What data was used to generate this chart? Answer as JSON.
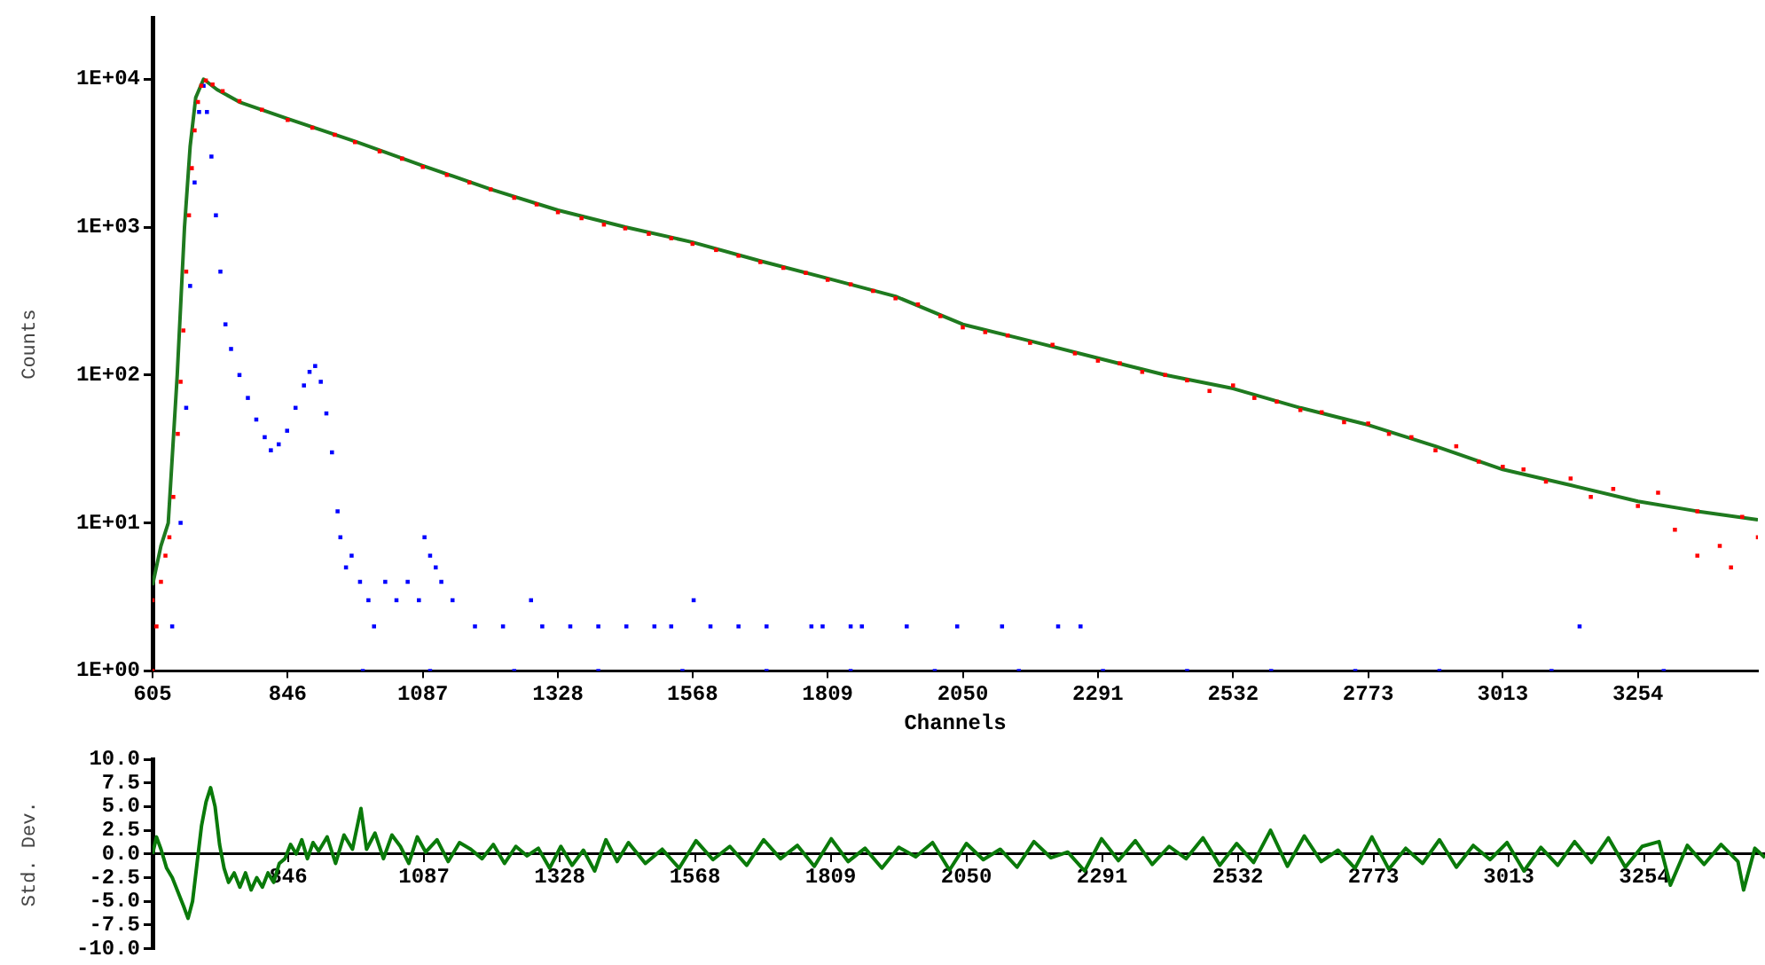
{
  "chart_data": [
    {
      "type": "scatter",
      "xlabel": "Channels",
      "ylabel": "Counts",
      "log": true,
      "grid": false,
      "legend": false,
      "xlim": [
        605,
        3468
      ],
      "xticks": [
        605,
        846,
        1087,
        1328,
        1568,
        1809,
        2050,
        2291,
        2532,
        2773,
        3013,
        3254
      ],
      "ylim": [
        1,
        26000
      ],
      "yticks": [
        {
          "value": 1,
          "label": "1E+00"
        },
        {
          "value": 10,
          "label": "1E+01"
        },
        {
          "value": 100,
          "label": "1E+02"
        },
        {
          "value": 1000,
          "label": "1E+03"
        },
        {
          "value": 10000,
          "label": "1E+04"
        }
      ],
      "series": [
        {
          "color": "#ff0000",
          "marker": "square",
          "x": [
            605,
            605,
            612,
            620,
            628,
            635,
            642,
            650,
            655,
            660,
            665,
            670,
            675,
            680,
            686,
            692,
            700,
            712,
            730,
            760,
            800,
            846,
            890,
            930,
            966,
            1010,
            1050,
            1087,
            1130,
            1170,
            1208,
            1250,
            1290,
            1328,
            1370,
            1410,
            1448,
            1490,
            1530,
            1568,
            1610,
            1650,
            1689,
            1730,
            1770,
            1809,
            1850,
            1890,
            1930,
            1970,
            2010,
            2050,
            2090,
            2130,
            2170,
            2210,
            2250,
            2291,
            2330,
            2370,
            2411,
            2450,
            2490,
            2532,
            2570,
            2610,
            2652,
            2690,
            2730,
            2773,
            2810,
            2850,
            2893,
            2930,
            2970,
            3013,
            3050,
            3090,
            3134,
            3170,
            3210,
            3254,
            3290,
            3320,
            3360,
            3360,
            3400,
            3420,
            3440,
            3468
          ],
          "values": [
            1,
            3,
            2,
            4,
            6,
            8,
            15,
            40,
            90,
            200,
            500,
            1200,
            2500,
            4500,
            7000,
            9000,
            9800,
            9200,
            8300,
            7100,
            6200,
            5300,
            4700,
            4200,
            3750,
            3250,
            2900,
            2550,
            2250,
            2000,
            1800,
            1580,
            1420,
            1260,
            1150,
            1040,
            980,
            900,
            840,
            770,
            700,
            640,
            580,
            530,
            490,
            440,
            410,
            370,
            330,
            300,
            250,
            210,
            195,
            185,
            165,
            160,
            140,
            125,
            120,
            105,
            100,
            92,
            78,
            85,
            70,
            66,
            58,
            56,
            48,
            47,
            40,
            38,
            31,
            33,
            26,
            24,
            23,
            19,
            20,
            15,
            17,
            13,
            16,
            9,
            12,
            6,
            7,
            5,
            11,
            8
          ]
        },
        {
          "color": "#0000ff",
          "marker": "square",
          "x": [
            640,
            655,
            665,
            672,
            680,
            688,
            696,
            702,
            710,
            718,
            726,
            735,
            745,
            760,
            775,
            790,
            805,
            816,
            830,
            845,
            860,
            875,
            885,
            895,
            905,
            915,
            925,
            935,
            940,
            950,
            960,
            975,
            990,
            1000,
            1020,
            1040,
            1060,
            1080,
            1090,
            1100,
            1110,
            1120,
            1140,
            1180,
            1230,
            1280,
            1300,
            1350,
            1400,
            1450,
            1500,
            1530,
            1570,
            1600,
            1650,
            1700,
            1780,
            1800,
            1850,
            1870,
            1950,
            2040,
            2120,
            2220,
            2260,
            3150,
            980,
            1100,
            1250,
            1400,
            1550,
            1700,
            1850,
            2000,
            2150,
            2300,
            2450,
            2600,
            2750,
            2900,
            3100,
            3300
          ],
          "values": [
            2,
            10,
            60,
            400,
            2000,
            6000,
            9000,
            6000,
            3000,
            1200,
            500,
            220,
            150,
            100,
            70,
            50,
            38,
            31,
            34,
            42,
            60,
            85,
            105,
            115,
            90,
            55,
            30,
            12,
            8,
            5,
            6,
            4,
            3,
            2,
            4,
            3,
            4,
            3,
            8,
            6,
            5,
            4,
            3,
            2,
            2,
            3,
            2,
            2,
            2,
            2,
            2,
            2,
            3,
            2,
            2,
            2,
            2,
            2,
            2,
            2,
            2,
            2,
            2,
            2,
            2,
            2,
            1,
            1,
            1,
            1,
            1,
            1,
            1,
            1,
            1,
            1,
            1,
            1,
            1,
            1,
            1,
            1
          ]
        },
        {
          "type": "line",
          "color": "#1f7a1f",
          "marker": "none",
          "x": [
            605,
            620,
            633,
            649,
            662,
            672,
            682,
            696,
            720,
            760,
            846,
            966,
            1087,
            1208,
            1328,
            1448,
            1568,
            1689,
            1809,
            1930,
            2050,
            2170,
            2291,
            2411,
            2532,
            2652,
            2773,
            2893,
            3013,
            3134,
            3254,
            3360,
            3468
          ],
          "values": [
            3.8,
            7,
            10,
            100,
            1000,
            3500,
            7500,
            10000,
            8500,
            7000,
            5400,
            3800,
            2600,
            1800,
            1300,
            1000,
            790,
            590,
            450,
            340,
            220,
            170,
            130,
            100,
            81,
            60,
            46,
            33,
            23,
            18,
            14,
            12,
            10.5
          ]
        }
      ]
    },
    {
      "type": "line",
      "ylabel": "Std. Dev.",
      "grid": false,
      "legend": false,
      "xlim": [
        605,
        3468
      ],
      "xticks": [
        846,
        1087,
        1328,
        1568,
        1809,
        2050,
        2291,
        2532,
        2773,
        3013,
        3254
      ],
      "ylim": [
        -10,
        10
      ],
      "yticks": [
        {
          "value": 10,
          "label": "10.0"
        },
        {
          "value": 7.5,
          "label": "7.5"
        },
        {
          "value": 5,
          "label": "5.0"
        },
        {
          "value": 2.5,
          "label": "2.5"
        },
        {
          "value": 0,
          "label": "0.0"
        },
        {
          "value": -2.5,
          "label": "-2.5"
        },
        {
          "value": -5,
          "label": "-5.0"
        },
        {
          "value": -7.5,
          "label": "-7.5"
        },
        {
          "value": -10,
          "label": "-10.0"
        }
      ],
      "series": [
        {
          "color": "#0a7a0a",
          "marker": "none",
          "x": [
            605,
            612,
            620,
            630,
            640,
            650,
            660,
            668,
            676,
            684,
            692,
            700,
            708,
            716,
            724,
            732,
            740,
            750,
            760,
            770,
            780,
            790,
            800,
            810,
            820,
            830,
            840,
            850,
            860,
            870,
            880,
            890,
            900,
            915,
            930,
            945,
            960,
            975,
            985,
            1000,
            1015,
            1030,
            1045,
            1060,
            1075,
            1090,
            1110,
            1130,
            1150,
            1170,
            1190,
            1210,
            1230,
            1250,
            1270,
            1290,
            1310,
            1330,
            1350,
            1370,
            1390,
            1410,
            1430,
            1450,
            1480,
            1510,
            1540,
            1570,
            1600,
            1630,
            1660,
            1690,
            1720,
            1750,
            1780,
            1810,
            1840,
            1870,
            1900,
            1930,
            1960,
            1990,
            2020,
            2050,
            2080,
            2110,
            2140,
            2170,
            2200,
            2230,
            2260,
            2290,
            2320,
            2350,
            2380,
            2410,
            2440,
            2470,
            2500,
            2530,
            2560,
            2590,
            2620,
            2650,
            2680,
            2710,
            2740,
            2770,
            2800,
            2830,
            2860,
            2890,
            2920,
            2950,
            2980,
            3010,
            3040,
            3070,
            3100,
            3130,
            3160,
            3190,
            3220,
            3250,
            3280,
            3300,
            3330,
            3360,
            3390,
            3420,
            3430,
            3450,
            3468
          ],
          "values": [
            0,
            1.8,
            0.5,
            -1.5,
            -2.5,
            -4,
            -5.5,
            -6.8,
            -5,
            -1,
            3,
            5.5,
            7,
            5,
            1,
            -1.5,
            -3,
            -2,
            -3.5,
            -2,
            -3.8,
            -2.5,
            -3.5,
            -2,
            -3,
            -1,
            -0.5,
            1,
            0,
            1.5,
            -0.5,
            1.2,
            0.3,
            1.8,
            -1,
            2,
            0.5,
            4.8,
            0.5,
            2.2,
            -0.5,
            2,
            0.8,
            -1,
            1.8,
            0.2,
            1.5,
            -0.8,
            1.2,
            0.5,
            -0.5,
            1,
            -1,
            0.8,
            -0.2,
            0.6,
            -1.5,
            0.8,
            -1.2,
            0.4,
            -1.8,
            1.5,
            -0.8,
            1.2,
            -1,
            0.5,
            -1.5,
            1.4,
            -0.6,
            0.8,
            -1.2,
            1.5,
            -0.5,
            0.9,
            -1.3,
            1.6,
            -0.8,
            0.6,
            -1.5,
            0.7,
            -0.3,
            1.2,
            -1.7,
            1.1,
            -0.6,
            0.5,
            -1.4,
            1.3,
            -0.4,
            0.2,
            -1.8,
            1.6,
            -0.7,
            1.4,
            -1.1,
            0.8,
            -0.5,
            1.7,
            -1.2,
            1.1,
            -0.9,
            2.5,
            -1.3,
            1.9,
            -0.8,
            0.4,
            -1.5,
            1.8,
            -1.6,
            0.6,
            -1,
            1.5,
            -1.4,
            0.9,
            -0.6,
            1.2,
            -1.8,
            0.7,
            -1.2,
            1.3,
            -0.9,
            1.7,
            -1.4,
            0.8,
            1.3,
            -3.3,
            0.9,
            -1.1,
            1,
            -0.8,
            -3.8,
            0.6,
            -0.4
          ]
        }
      ]
    }
  ]
}
